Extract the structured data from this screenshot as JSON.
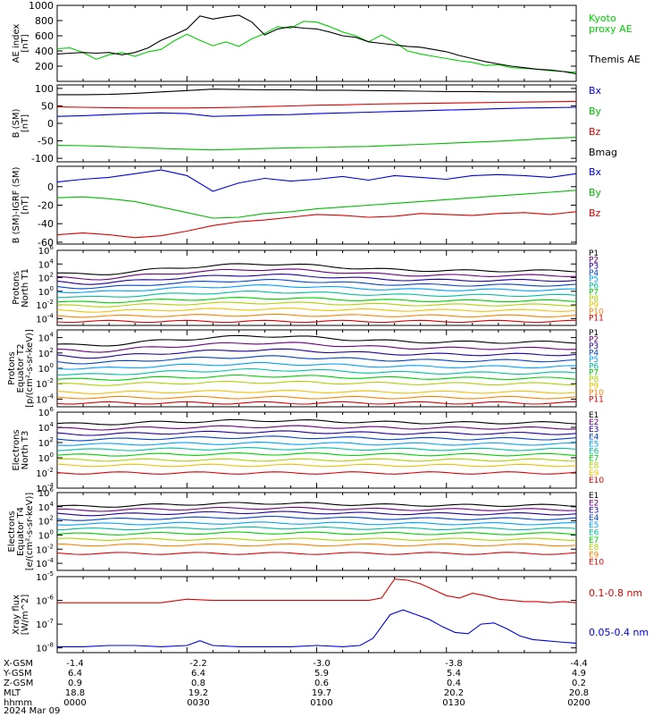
{
  "chart_data": [
    {
      "type": "line",
      "ylabel": "AE index\n[nT]",
      "ylim": [
        0,
        1000
      ],
      "yticks": [
        200,
        400,
        600,
        800,
        1000
      ],
      "log": false,
      "series": [
        {
          "name": "Kyoto\nproxy AE",
          "color": "#00d000",
          "x": [
            0,
            3,
            6,
            9,
            12,
            15,
            18,
            21,
            24,
            27,
            30,
            33,
            36,
            39,
            42,
            45,
            48,
            51,
            54,
            57,
            60,
            63,
            66,
            69,
            72,
            75,
            78,
            81,
            84,
            87,
            90,
            93,
            96,
            99,
            102,
            105,
            108,
            111,
            114,
            117,
            120
          ],
          "y": [
            430,
            440,
            380,
            290,
            350,
            380,
            330,
            390,
            420,
            530,
            620,
            540,
            470,
            520,
            460,
            560,
            630,
            720,
            700,
            790,
            780,
            720,
            650,
            600,
            520,
            610,
            520,
            400,
            360,
            330,
            300,
            270,
            250,
            210,
            220,
            180,
            170,
            160,
            140,
            130,
            120
          ]
        },
        {
          "name": "Themis AE",
          "color": "#000000",
          "x": [
            0,
            3,
            6,
            9,
            12,
            15,
            18,
            21,
            24,
            27,
            30,
            33,
            36,
            39,
            42,
            45,
            48,
            51,
            54,
            57,
            60,
            63,
            66,
            69,
            72,
            75,
            78,
            81,
            84,
            87,
            90,
            93,
            96,
            99,
            102,
            105,
            108,
            111,
            114,
            117,
            120
          ],
          "y": [
            360,
            370,
            380,
            370,
            380,
            350,
            380,
            440,
            540,
            610,
            690,
            860,
            820,
            850,
            870,
            780,
            610,
            690,
            720,
            700,
            690,
            650,
            600,
            580,
            520,
            500,
            480,
            460,
            450,
            420,
            390,
            340,
            300,
            260,
            230,
            200,
            180,
            160,
            150,
            130,
            100
          ]
        }
      ]
    },
    {
      "type": "line",
      "ylabel": "B (SM)\n[nT]",
      "ylim": [
        -110,
        110
      ],
      "yticks": [
        -100,
        -50,
        0,
        50,
        100
      ],
      "log": false,
      "series": [
        {
          "name": "Bx",
          "color": "#0000dd",
          "x": [
            0,
            6,
            12,
            18,
            24,
            30,
            36,
            42,
            48,
            54,
            60,
            66,
            72,
            78,
            84,
            90,
            96,
            102,
            108,
            114,
            120
          ],
          "y": [
            20,
            22,
            25,
            28,
            30,
            28,
            20,
            22,
            24,
            25,
            28,
            30,
            32,
            34,
            36,
            38,
            40,
            42,
            44,
            45,
            46
          ]
        },
        {
          "name": "By",
          "color": "#00bb00",
          "x": [
            0,
            6,
            12,
            18,
            24,
            30,
            36,
            42,
            48,
            54,
            60,
            66,
            72,
            78,
            84,
            90,
            96,
            102,
            108,
            114,
            120
          ],
          "y": [
            -63,
            -64,
            -66,
            -69,
            -72,
            -74,
            -76,
            -74,
            -72,
            -70,
            -69,
            -67,
            -66,
            -63,
            -60,
            -57,
            -54,
            -51,
            -47,
            -43,
            -40
          ]
        },
        {
          "name": "Bz",
          "color": "#dd0000",
          "x": [
            0,
            6,
            12,
            18,
            24,
            30,
            36,
            42,
            48,
            54,
            60,
            66,
            72,
            78,
            84,
            90,
            96,
            102,
            108,
            114,
            120
          ],
          "y": [
            47,
            46,
            45,
            44,
            44,
            44,
            45,
            46,
            48,
            50,
            52,
            53,
            55,
            56,
            57,
            58,
            59,
            60,
            61,
            62,
            63
          ]
        },
        {
          "name": "Bmag",
          "color": "#000000",
          "x": [
            0,
            6,
            12,
            18,
            24,
            30,
            36,
            42,
            48,
            54,
            60,
            66,
            72,
            78,
            84,
            90,
            96,
            102,
            108,
            114,
            120
          ],
          "y": [
            82,
            82,
            83,
            86,
            90,
            94,
            98,
            97,
            96,
            96,
            95,
            95,
            94,
            93,
            92,
            91,
            91,
            90,
            90,
            90,
            90
          ]
        }
      ]
    },
    {
      "type": "line",
      "ylabel": "B (SM)-IGRF (SM)\n[nT]",
      "ylim": [
        -62,
        22
      ],
      "yticks": [
        -60,
        -40,
        -20,
        0
      ],
      "log": false,
      "series": [
        {
          "name": "Bx",
          "color": "#0000dd",
          "x": [
            0,
            6,
            12,
            18,
            24,
            30,
            36,
            42,
            48,
            54,
            60,
            66,
            72,
            78,
            84,
            90,
            96,
            102,
            108,
            114,
            120
          ],
          "y": [
            5,
            8,
            10,
            14,
            18,
            12,
            -5,
            4,
            9,
            6,
            8,
            11,
            7,
            12,
            10,
            8,
            12,
            13,
            12,
            10,
            14
          ]
        },
        {
          "name": "By",
          "color": "#00bb00",
          "x": [
            0,
            6,
            12,
            18,
            24,
            30,
            36,
            42,
            48,
            54,
            60,
            66,
            72,
            78,
            84,
            90,
            96,
            102,
            108,
            114,
            120
          ],
          "y": [
            -12,
            -11,
            -13,
            -16,
            -22,
            -28,
            -34,
            -33,
            -29,
            -27,
            -24,
            -22,
            -20,
            -18,
            -16,
            -14,
            -12,
            -10,
            -8,
            -6,
            -4
          ]
        },
        {
          "name": "Bz",
          "color": "#dd0000",
          "x": [
            0,
            6,
            12,
            18,
            24,
            30,
            36,
            42,
            48,
            54,
            60,
            66,
            72,
            78,
            84,
            90,
            96,
            102,
            108,
            114,
            120
          ],
          "y": [
            -52,
            -50,
            -52,
            -55,
            -53,
            -48,
            -42,
            -38,
            -36,
            -33,
            -30,
            -31,
            -33,
            -32,
            -29,
            -30,
            -31,
            -29,
            -28,
            -30,
            -27
          ]
        }
      ]
    },
    {
      "type": "line",
      "ylabel": "Protons\nNorth T1",
      "ylim_exp": [
        -5,
        6
      ],
      "yticks_exp": [
        -4,
        -2,
        0,
        2,
        4,
        6
      ],
      "log": true,
      "series": [
        {
          "name": "P1",
          "color": "#000000",
          "base": 3.0,
          "shape": 1.0
        },
        {
          "name": "P2",
          "color": "#6a0080",
          "base": 2.3,
          "shape": 0.9
        },
        {
          "name": "P3",
          "color": "#2000a0",
          "base": 1.6,
          "shape": 0.8
        },
        {
          "name": "P4",
          "color": "#0044cc",
          "base": 0.9,
          "shape": 0.7
        },
        {
          "name": "P5",
          "color": "#00a0ff",
          "base": 0.2,
          "shape": 0.6
        },
        {
          "name": "P6",
          "color": "#00c0a0",
          "base": -0.6,
          "shape": 0.5
        },
        {
          "name": "P7",
          "color": "#00d000",
          "base": -1.4,
          "shape": 0.4
        },
        {
          "name": "P8",
          "color": "#b0d000",
          "base": -2.0,
          "shape": 0.3
        },
        {
          "name": "P9",
          "color": "#f0c000",
          "base": -2.8,
          "shape": 0.2
        },
        {
          "name": "P10",
          "color": "#ff8000",
          "base": -3.6,
          "shape": 0.1
        },
        {
          "name": "P11",
          "color": "#dd0000",
          "base": -4.4,
          "shape": 0.0
        }
      ]
    },
    {
      "type": "line",
      "ylabel": "Protons\nEquator T2\n[p/(cm²-s-sr-keV)]",
      "ylim_exp": [
        -5,
        5
      ],
      "yticks_exp": [
        -4,
        -2,
        0,
        2,
        4
      ],
      "log": true,
      "series": [
        {
          "name": "P1",
          "color": "#000000",
          "base": 3.4,
          "shape": 0.8
        },
        {
          "name": "P2",
          "color": "#6a0080",
          "base": 2.6,
          "shape": 0.7
        },
        {
          "name": "P3",
          "color": "#2000a0",
          "base": 1.8,
          "shape": 0.6
        },
        {
          "name": "P4",
          "color": "#0044cc",
          "base": 1.0,
          "shape": 0.5
        },
        {
          "name": "P5",
          "color": "#00a0ff",
          "base": 0.2,
          "shape": 0.4
        },
        {
          "name": "P6",
          "color": "#00c0a0",
          "base": -0.6,
          "shape": 0.4
        },
        {
          "name": "P7",
          "color": "#00d000",
          "base": -1.3,
          "shape": 0.3
        },
        {
          "name": "P8",
          "color": "#b0d000",
          "base": -2.0,
          "shape": 0.2
        },
        {
          "name": "P9",
          "color": "#f0c000",
          "base": -3.1,
          "shape": 0.1
        },
        {
          "name": "P10",
          "color": "#ff8000",
          "base": -3.8,
          "shape": 0.0
        },
        {
          "name": "P11",
          "color": "#dd0000",
          "base": -4.5,
          "shape": 0.0
        }
      ]
    },
    {
      "type": "line",
      "ylabel": "Electrons\nNorth T3",
      "ylim_exp": [
        -4,
        6
      ],
      "yticks_exp": [
        -4,
        -2,
        0,
        2,
        4,
        6
      ],
      "log": true,
      "series": [
        {
          "name": "E1",
          "color": "#000000",
          "base": 4.6,
          "shape": 0.3
        },
        {
          "name": "E2",
          "color": "#6a0080",
          "base": 3.9,
          "shape": 0.2
        },
        {
          "name": "E3",
          "color": "#2000a0",
          "base": 3.2,
          "shape": 0.2
        },
        {
          "name": "E4",
          "color": "#0044cc",
          "base": 2.5,
          "shape": 0.2
        },
        {
          "name": "E5",
          "color": "#00a0ff",
          "base": 1.8,
          "shape": 0.1
        },
        {
          "name": "E6",
          "color": "#00c0a0",
          "base": 1.1,
          "shape": 0.1
        },
        {
          "name": "E7",
          "color": "#00d000",
          "base": 0.4,
          "shape": 0.1
        },
        {
          "name": "E8",
          "color": "#b0d000",
          "base": -0.3,
          "shape": 0.0
        },
        {
          "name": "E9",
          "color": "#f0c000",
          "base": -1.0,
          "shape": 0.0
        },
        {
          "name": "E10",
          "color": "#dd0000",
          "base": -2.0,
          "shape": 0.0
        }
      ]
    },
    {
      "type": "line",
      "ylabel": "Electrons\nEquator T4\n[e/(cm²-s-sr-keV)]",
      "ylim_exp": [
        -5,
        6
      ],
      "yticks_exp": [
        -4,
        -2,
        0,
        2,
        4,
        6
      ],
      "log": true,
      "series": [
        {
          "name": "E1",
          "color": "#000000",
          "base": 4.2,
          "shape": 0.3
        },
        {
          "name": "E2",
          "color": "#6a0080",
          "base": 3.6,
          "shape": 0.2
        },
        {
          "name": "E3",
          "color": "#2000a0",
          "base": 3.0,
          "shape": 0.2
        },
        {
          "name": "E4",
          "color": "#0044cc",
          "base": 2.3,
          "shape": 0.2
        },
        {
          "name": "E5",
          "color": "#00a0ff",
          "base": 1.6,
          "shape": 0.1
        },
        {
          "name": "E6",
          "color": "#00c0a0",
          "base": 0.9,
          "shape": 0.1
        },
        {
          "name": "E7",
          "color": "#00d000",
          "base": 0.2,
          "shape": 0.1
        },
        {
          "name": "E8",
          "color": "#b0d000",
          "base": -0.6,
          "shape": 0.0
        },
        {
          "name": "E9",
          "color": "#ff8000",
          "base": -1.4,
          "shape": 0.0
        },
        {
          "name": "E10",
          "color": "#dd0000",
          "base": -2.6,
          "shape": 0.0
        }
      ]
    },
    {
      "type": "line",
      "ylabel": "Xray flux\n[W/m^2]",
      "ylim_exp": [
        -8.2,
        -5
      ],
      "yticks_exp": [
        -8,
        -7,
        -6,
        -5
      ],
      "log": true,
      "series": [
        {
          "name": "0.1-0.8 nm",
          "color": "#dd0000",
          "x": [
            0,
            6,
            12,
            18,
            24,
            30,
            36,
            42,
            48,
            54,
            60,
            66,
            72,
            75,
            78,
            81,
            84,
            87,
            90,
            93,
            96,
            99,
            102,
            105,
            108,
            111,
            114,
            117,
            120
          ],
          "y": [
            -6.1,
            -6.1,
            -6.1,
            -6.1,
            -6.1,
            -5.95,
            -6.0,
            -6.0,
            -6.0,
            -6.0,
            -6.0,
            -6.0,
            -6.0,
            -5.9,
            -5.1,
            -5.15,
            -5.3,
            -5.55,
            -5.8,
            -5.9,
            -5.7,
            -5.8,
            -5.95,
            -6.0,
            -6.05,
            -6.05,
            -6.1,
            -6.05,
            -6.1
          ]
        },
        {
          "name": "0.05-0.4 nm",
          "color": "#0000dd",
          "x": [
            0,
            6,
            12,
            18,
            24,
            30,
            33,
            36,
            42,
            48,
            54,
            60,
            66,
            70,
            73,
            75,
            77,
            80,
            83,
            86,
            89,
            92,
            95,
            98,
            101,
            104,
            107,
            110,
            113,
            116,
            120
          ],
          "y": [
            -7.95,
            -7.95,
            -7.9,
            -7.9,
            -7.95,
            -7.9,
            -7.7,
            -7.9,
            -7.95,
            -7.95,
            -7.95,
            -7.9,
            -7.95,
            -7.9,
            -7.6,
            -7.1,
            -6.6,
            -6.4,
            -6.6,
            -6.8,
            -7.1,
            -7.35,
            -7.4,
            -7.0,
            -6.95,
            -7.2,
            -7.5,
            -7.65,
            -7.7,
            -7.75,
            -7.8
          ]
        }
      ]
    }
  ],
  "footer": {
    "rows": [
      {
        "label": "X-GSM",
        "values": [
          "-1.4",
          "-2.2",
          "-3.0",
          "-3.8",
          "-4.4"
        ]
      },
      {
        "label": "Y-GSM",
        "values": [
          "6.4",
          "6.4",
          "5.9",
          "5.4",
          "4.9"
        ]
      },
      {
        "label": "Z-GSM",
        "values": [
          "0.9",
          "0.8",
          "0.6",
          "0.4",
          "0.2"
        ]
      },
      {
        "label": "MLT",
        "values": [
          "18.8",
          "19.2",
          "19.7",
          "20.2",
          "20.8"
        ]
      },
      {
        "label": "hhmm",
        "values": [
          "0000",
          "0030",
          "0100",
          "0130",
          "0200"
        ]
      }
    ],
    "date": "2024 Mar 09"
  }
}
